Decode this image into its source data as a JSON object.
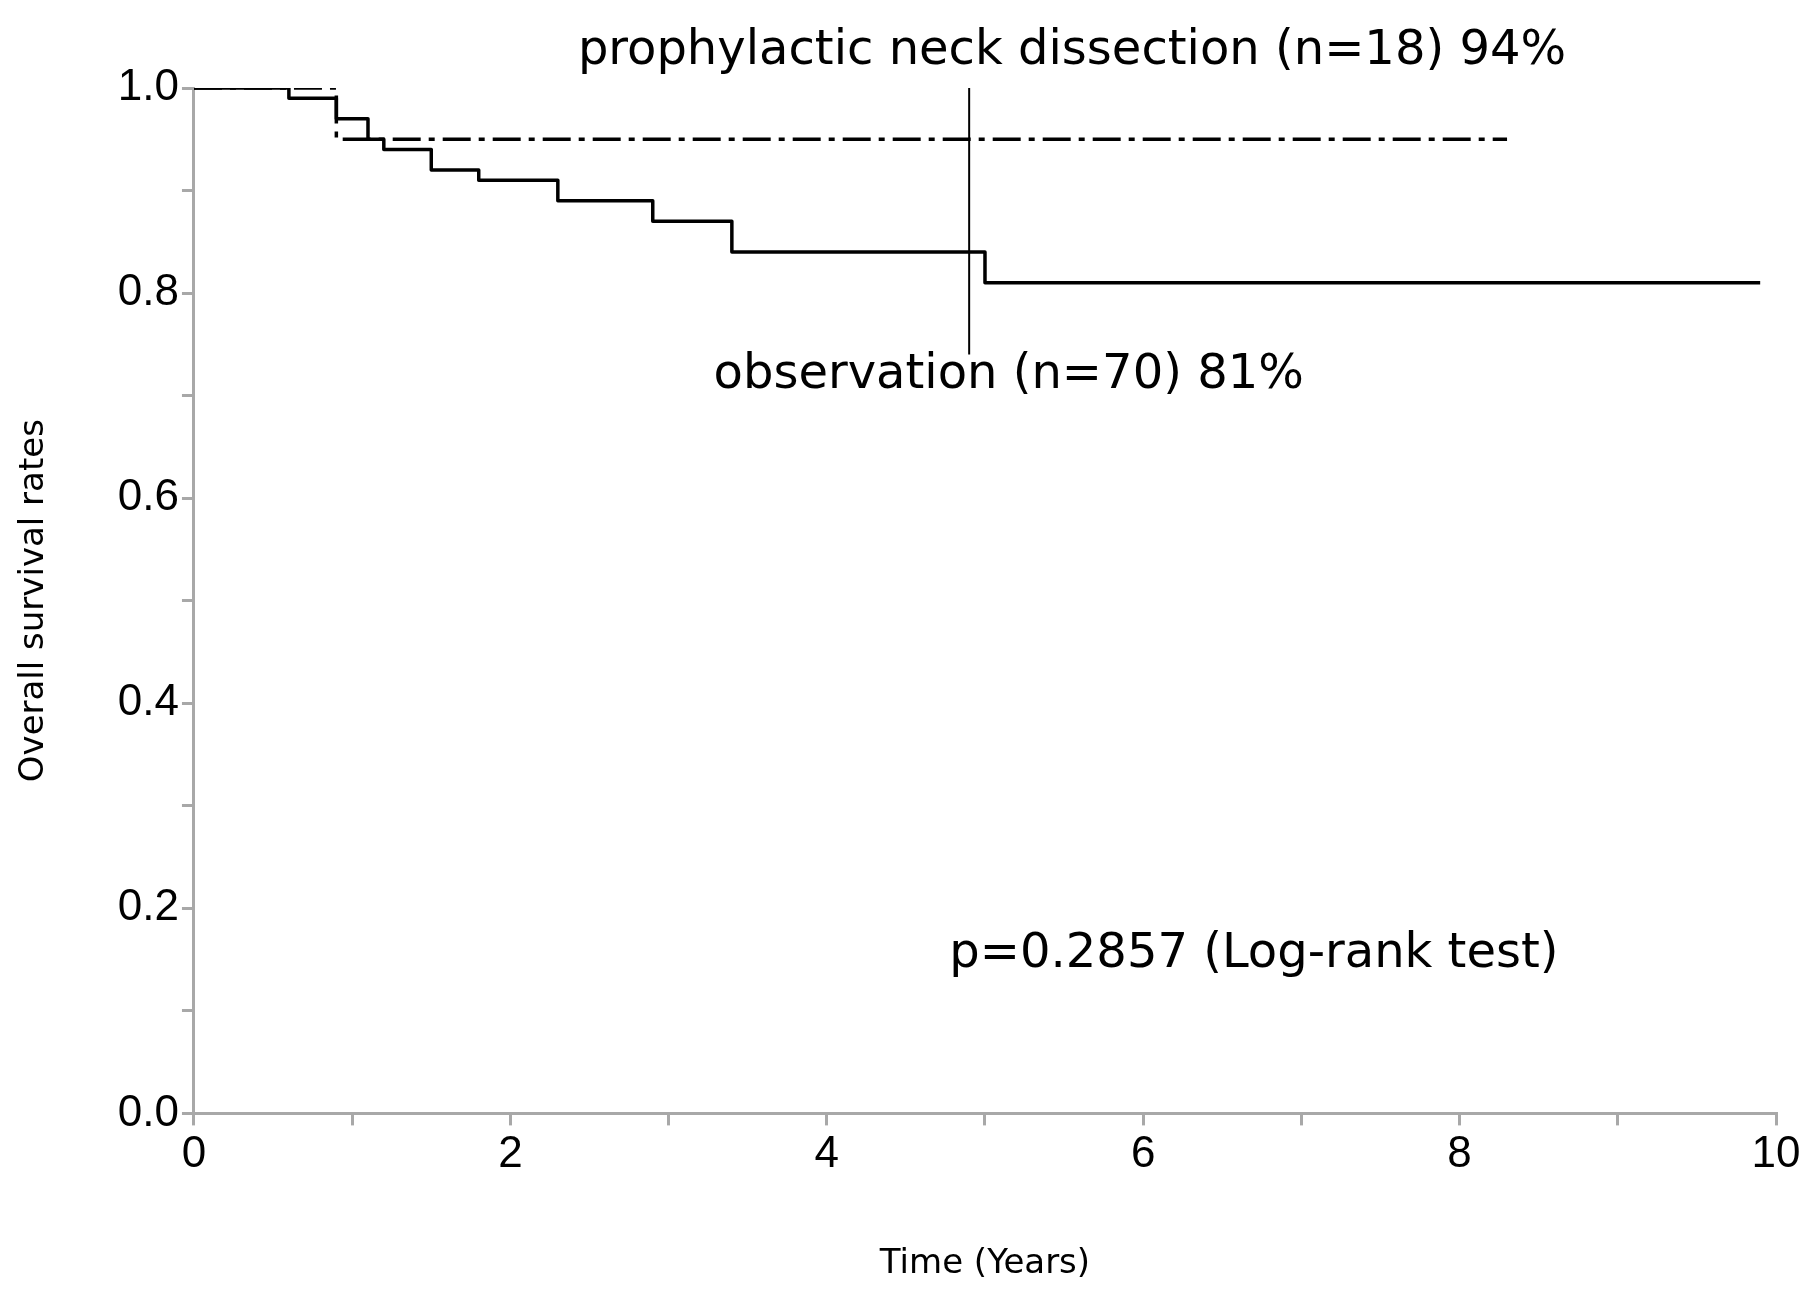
{
  "chart_data": {
    "type": "step",
    "xlabel": "Time (Years)",
    "ylabel": "Overall survival rates",
    "xlim": [
      0,
      10
    ],
    "xticks": [
      0,
      {
        "value": 1,
        "label": null
      },
      2,
      {
        "value": 3,
        "label": null
      },
      4,
      {
        "value": 5,
        "label": null
      },
      6,
      {
        "value": 7,
        "label": null
      },
      8,
      {
        "value": 9,
        "label": null
      },
      10
    ],
    "ylim": [
      0,
      1
    ],
    "yticks": [
      {
        "value": 0,
        "label": "0.0"
      },
      {
        "value": 0.1,
        "label": null
      },
      {
        "value": 0.2,
        "label": "0.2"
      },
      {
        "value": 0.3,
        "label": null
      },
      {
        "value": 0.4,
        "label": "0.4"
      },
      {
        "value": 0.5,
        "label": null
      },
      {
        "value": 0.6,
        "label": "0.6"
      },
      {
        "value": 0.7,
        "label": null
      },
      {
        "value": 0.8,
        "label": "0.8"
      },
      {
        "value": 0.9,
        "label": null
      },
      {
        "value": 1,
        "label": "1.0"
      }
    ],
    "grid": false,
    "legend": false,
    "marker": "none",
    "series": [
      {
        "type": "step",
        "color": "#000000",
        "line_style": "solid",
        "x": [
          0,
          0.6,
          0.9,
          1.1,
          1.2,
          1.5,
          1.8,
          2.3,
          2.9,
          3.4,
          5.0,
          9.9
        ],
        "values": [
          1,
          0.99,
          0.97,
          0.95,
          0.94,
          0.92,
          0.91,
          0.89,
          0.87,
          0.84,
          0.81,
          0.81
        ]
      },
      {
        "type": "step",
        "color": "#000000",
        "line_style": "dashed",
        "x": [
          0,
          0.9,
          8.3
        ],
        "values": [
          1,
          0.95,
          0.95
        ]
      }
    ],
    "ref_lines": [
      {
        "axis": "x",
        "value": 4.9,
        "color": "#000000"
      }
    ],
    "annotations": [
      "prophylactic neck dissection (n=18) 94%",
      "observation (n=70) 81%",
      "p=0.2857 (Log-rank test)"
    ]
  }
}
